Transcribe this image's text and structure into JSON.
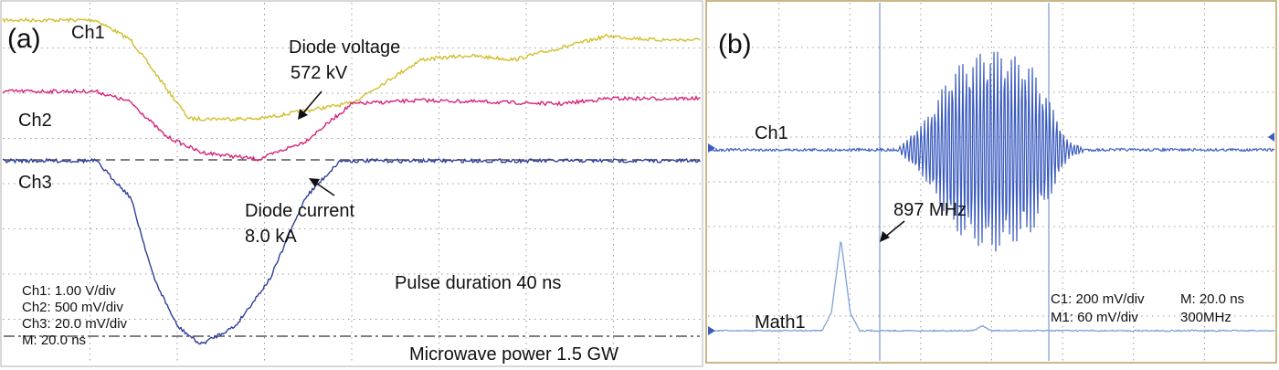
{
  "panel_a": {
    "label": "(a)",
    "ch1_label": "Ch1",
    "ch2_label": "Ch2",
    "ch3_label": "Ch3",
    "voltage_title": "Diode voltage",
    "voltage_value": "572 kV",
    "current_title": "Diode current",
    "current_value": "8.0 kA",
    "pulse_text": "Pulse duration 40 ns",
    "power_text": "Microwave power 1.5 GW",
    "settings": [
      "Ch1: 1.00 V/div",
      "Ch2: 500 mV/div",
      "Ch3: 20.0 mV/div",
      "M: 20.0 ns"
    ]
  },
  "panel_b": {
    "label": "(b)",
    "ch1_label": "Ch1",
    "math_label": "Math1",
    "freq_value": "897 MHz",
    "settings_row1": [
      "C1: 200 mV/div",
      "M: 20.0 ns"
    ],
    "settings_row2": [
      "M1: 60 mV/div",
      "300MHz"
    ]
  },
  "colors": {
    "ch1": "#d2bf2c",
    "ch2": "#d6247a",
    "ch3": "#2e3f9a",
    "panel_b_trace": "#3b5bbf",
    "panel_b_math": "#7fa3d8",
    "grid": "#9a9a9a"
  },
  "chart_data": [
    {
      "type": "line",
      "panel": "a",
      "x_unit": "ns",
      "series": [
        {
          "name": "Ch1",
          "x": [
            0,
            40,
            55,
            80,
            110,
            150,
            180,
            200,
            220,
            240,
            260,
            280,
            300
          ],
          "y": [
            5,
            5,
            4,
            0,
            0,
            0.8,
            3,
            3.2,
            3,
            3.6,
            4.2,
            4,
            4
          ]
        },
        {
          "name": "Ch2",
          "x": [
            0,
            40,
            55,
            70,
            85,
            110,
            130,
            150,
            180,
            240,
            260,
            300
          ],
          "y": [
            5,
            5,
            4.4,
            2.5,
            1.6,
            1.2,
            2.2,
            4.3,
            4.5,
            4.3,
            4.6,
            4.6
          ]
        },
        {
          "name": "Ch3",
          "x": [
            0,
            40,
            55,
            65,
            75,
            85,
            100,
            115,
            130,
            145,
            300
          ],
          "y": [
            5,
            5,
            4,
            1.8,
            0.5,
            0,
            0.5,
            1.8,
            4,
            5,
            5
          ]
        }
      ]
    },
    {
      "type": "line",
      "panel": "b",
      "x_unit": "ns",
      "series": [
        {
          "name": "Ch1",
          "x": [
            0,
            100,
            115,
            130,
            150,
            170,
            180,
            190,
            200,
            300
          ],
          "y": [
            0,
            0,
            0.3,
            0.8,
            1,
            0.85,
            0.5,
            0.1,
            0,
            0
          ]
        },
        {
          "name": "Math1",
          "x": [
            0,
            60,
            65,
            70,
            75,
            80,
            140,
            145,
            150,
            300
          ],
          "y": [
            0,
            0,
            0.2,
            1,
            0.2,
            0,
            0,
            0.05,
            0,
            0
          ]
        }
      ]
    }
  ]
}
